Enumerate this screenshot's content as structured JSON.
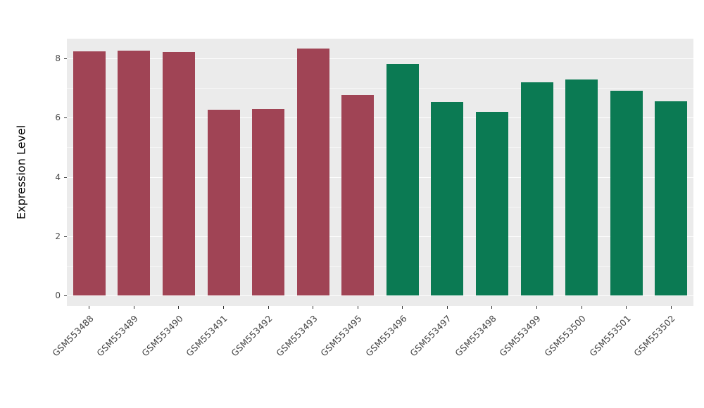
{
  "chart_data": {
    "type": "bar",
    "title": "",
    "xlabel": "",
    "ylabel": "Expression Level",
    "ylim": [
      0,
      8.7
    ],
    "yticks": [
      0,
      2,
      4,
      6,
      8
    ],
    "yticks_minor": [
      1,
      3,
      5,
      7
    ],
    "grid": true,
    "legend": false,
    "panel_background": "#ebebeb",
    "grid_color": "#ffffff",
    "group_colors": [
      "#a04455",
      "#0b7a53"
    ],
    "categories": [
      "GSM553488",
      "GSM553489",
      "GSM553490",
      "GSM553491",
      "GSM553492",
      "GSM553493",
      "GSM553495",
      "GSM553496",
      "GSM553497",
      "GSM553498",
      "GSM553499",
      "GSM553500",
      "GSM553501",
      "GSM553502"
    ],
    "values": [
      8.24,
      8.26,
      8.22,
      6.27,
      6.3,
      8.34,
      6.77,
      7.8,
      6.52,
      6.2,
      7.2,
      7.28,
      6.9,
      6.55
    ],
    "groups": [
      0,
      0,
      0,
      0,
      0,
      0,
      0,
      1,
      1,
      1,
      1,
      1,
      1,
      1
    ]
  }
}
